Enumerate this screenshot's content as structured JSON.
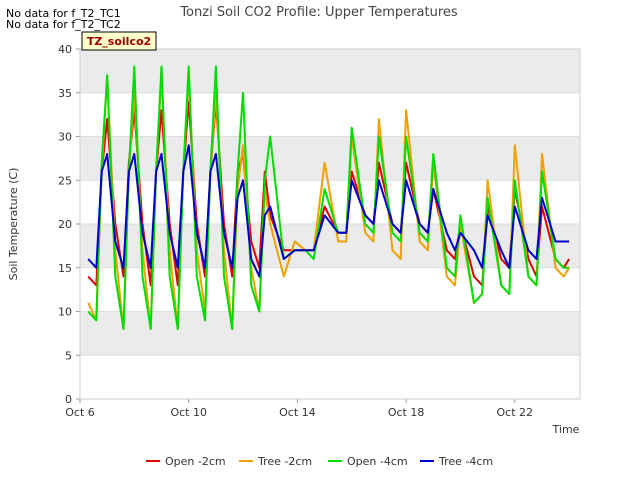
{
  "notes": [
    "No data for f_T2_TC1",
    "No data for f_T2_TC2"
  ],
  "site_tag": "TZ_soilco2",
  "chart_data": {
    "type": "line",
    "title": "Tonzi Soil CO2 Profile: Upper Temperatures",
    "xlabel": "Time",
    "ylabel": "Soil Temperature (C)",
    "ylim": [
      0,
      40
    ],
    "yticks": [
      0,
      5,
      10,
      15,
      20,
      25,
      30,
      35,
      40
    ],
    "xlim_day": [
      6,
      24.4
    ],
    "xticks": [
      {
        "day": 6,
        "label": "Oct 6"
      },
      {
        "day": 10,
        "label": "Oct 10"
      },
      {
        "day": 14,
        "label": "Oct 14"
      },
      {
        "day": 18,
        "label": "Oct 18"
      },
      {
        "day": 22,
        "label": "Oct 22"
      }
    ],
    "grid": "horizontal bands",
    "legend_position": "bottom",
    "colors": {
      "band": "#ebebeb",
      "axis": "#cccccc"
    },
    "series": [
      {
        "name": "Open -2cm",
        "color": "#dd0000",
        "days": [
          6.3,
          6.6,
          6.8,
          7.0,
          7.3,
          7.6,
          7.8,
          8.0,
          8.3,
          8.6,
          8.8,
          9.0,
          9.3,
          9.6,
          9.8,
          10.0,
          10.3,
          10.6,
          10.8,
          11.0,
          11.3,
          11.6,
          11.8,
          12.0,
          12.3,
          12.6,
          12.8,
          13.0,
          13.5,
          13.9,
          14.3,
          14.6,
          15.0,
          15.5,
          15.8,
          16.0,
          16.5,
          16.8,
          17.0,
          17.5,
          17.8,
          18.0,
          18.5,
          18.8,
          19.0,
          19.5,
          19.8,
          20.0,
          20.5,
          20.8,
          21.0,
          21.5,
          21.8,
          22.0,
          22.5,
          22.8,
          23.0,
          23.5,
          23.8,
          24.0
        ],
        "values": [
          14,
          13,
          26,
          32,
          20,
          14,
          27,
          33,
          20,
          13,
          26,
          33,
          20,
          13,
          26,
          34,
          20,
          14,
          26,
          34,
          20,
          14,
          26,
          28,
          18,
          15,
          26,
          21,
          17,
          17,
          17,
          17,
          22,
          19,
          19,
          26,
          21,
          20,
          27,
          20,
          19,
          27,
          20,
          19,
          24,
          17,
          16,
          20,
          14,
          13,
          22,
          16,
          15,
          24,
          16,
          14,
          22,
          16,
          15,
          16
        ]
      },
      {
        "name": "Tree -2cm",
        "color": "#f0a000",
        "days": [
          6.3,
          6.6,
          6.8,
          7.0,
          7.3,
          7.6,
          7.8,
          8.0,
          8.3,
          8.6,
          8.8,
          9.0,
          9.3,
          9.6,
          9.8,
          10.0,
          10.3,
          10.6,
          10.8,
          11.0,
          11.3,
          11.6,
          11.8,
          12.0,
          12.3,
          12.6,
          12.8,
          13.0,
          13.5,
          13.9,
          14.3,
          14.6,
          15.0,
          15.5,
          15.8,
          16.0,
          16.5,
          16.8,
          17.0,
          17.5,
          17.8,
          18.0,
          18.5,
          18.8,
          19.0,
          19.5,
          19.8,
          20.0,
          20.5,
          20.8,
          21.0,
          21.5,
          21.8,
          22.0,
          22.5,
          22.8,
          23.0,
          23.5,
          23.8,
          24.0
        ],
        "values": [
          11,
          9,
          26,
          37,
          17,
          8,
          26,
          35,
          17,
          8,
          26,
          37,
          17,
          8,
          26,
          37,
          17,
          10,
          26,
          35,
          17,
          8,
          24,
          29,
          15,
          10,
          24,
          20,
          14,
          18,
          17,
          17,
          27,
          18,
          18,
          30,
          19,
          18,
          32,
          17,
          16,
          33,
          18,
          17,
          27,
          14,
          13,
          20,
          11,
          12,
          25,
          13,
          12,
          29,
          14,
          13,
          28,
          15,
          14,
          15
        ]
      },
      {
        "name": "Open -4cm",
        "color": "#00dd00",
        "days": [
          6.3,
          6.6,
          6.8,
          7.0,
          7.3,
          7.6,
          7.8,
          8.0,
          8.3,
          8.6,
          8.8,
          9.0,
          9.3,
          9.6,
          9.8,
          10.0,
          10.3,
          10.6,
          10.8,
          11.0,
          11.3,
          11.6,
          11.8,
          12.0,
          12.3,
          12.6,
          12.8,
          13.0,
          13.5,
          13.9,
          14.3,
          14.6,
          15.0,
          15.5,
          15.8,
          16.0,
          16.5,
          16.8,
          17.0,
          17.5,
          17.8,
          18.0,
          18.5,
          18.8,
          19.0,
          19.5,
          19.8,
          20.0,
          20.5,
          20.8,
          21.0,
          21.5,
          21.8,
          22.0,
          22.5,
          22.8,
          23.0,
          23.5,
          23.8,
          24.0
        ],
        "values": [
          10,
          9,
          27,
          37,
          14,
          8,
          26,
          38,
          14,
          8,
          26,
          38,
          14,
          8,
          26,
          38,
          14,
          9,
          26,
          38,
          14,
          8,
          26,
          35,
          13,
          10,
          25,
          30,
          16,
          17,
          17,
          16,
          24,
          19,
          19,
          31,
          20,
          19,
          30,
          19,
          18,
          30,
          19,
          18,
          28,
          15,
          14,
          21,
          11,
          12,
          23,
          13,
          12,
          25,
          14,
          13,
          26,
          16,
          15,
          15
        ]
      },
      {
        "name": "Tree -4cm",
        "color": "#0000cc",
        "days": [
          6.3,
          6.6,
          6.8,
          7.0,
          7.3,
          7.6,
          7.8,
          8.0,
          8.3,
          8.6,
          8.8,
          9.0,
          9.3,
          9.6,
          9.8,
          10.0,
          10.3,
          10.6,
          10.8,
          11.0,
          11.3,
          11.6,
          11.8,
          12.0,
          12.3,
          12.6,
          12.8,
          13.0,
          13.5,
          13.9,
          14.3,
          14.6,
          15.0,
          15.5,
          15.8,
          16.0,
          16.5,
          16.8,
          17.0,
          17.5,
          17.8,
          18.0,
          18.5,
          18.8,
          19.0,
          19.5,
          19.8,
          20.0,
          20.5,
          20.8,
          21.0,
          21.5,
          21.8,
          22.0,
          22.5,
          22.8,
          23.0,
          23.5,
          23.8,
          24.0
        ],
        "values": [
          16,
          15,
          26,
          28,
          18,
          15,
          26,
          28,
          19,
          15,
          26,
          28,
          19,
          15,
          26,
          29,
          19,
          15,
          26,
          28,
          19,
          15,
          23,
          25,
          16,
          14,
          21,
          22,
          16,
          17,
          17,
          17,
          21,
          19,
          19,
          25,
          21,
          20,
          25,
          20,
          19,
          25,
          20,
          19,
          24,
          19,
          17,
          19,
          17,
          15,
          21,
          17,
          15,
          22,
          17,
          16,
          23,
          18,
          18,
          18
        ]
      }
    ]
  }
}
